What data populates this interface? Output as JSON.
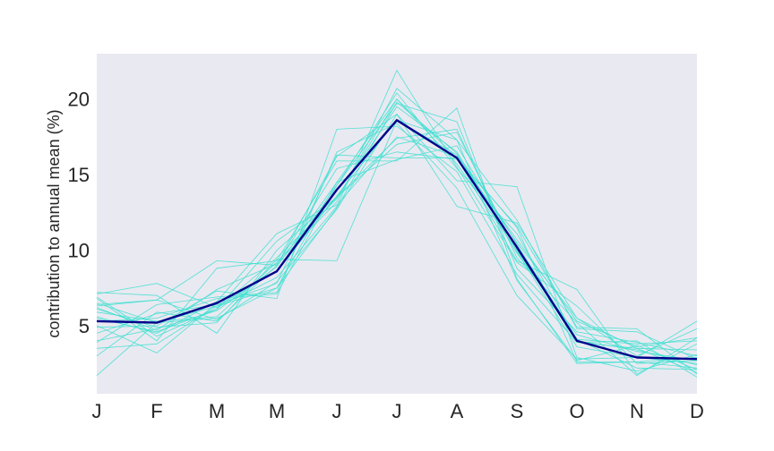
{
  "chart_data": {
    "type": "line",
    "title": "",
    "xlabel": "",
    "ylabel": "contribution to annual mean (%)",
    "categories": [
      "J",
      "F",
      "M",
      "M",
      "J",
      "J",
      "A",
      "S",
      "O",
      "N",
      "D"
    ],
    "ylim": [
      0.5,
      23
    ],
    "yticks": [
      5,
      10,
      15,
      20
    ],
    "grid": false,
    "background": "#e9e9f1",
    "colors": {
      "thin": "#40e0d0",
      "mean": "#00008b"
    },
    "series": [
      {
        "values": [
          6.5,
          5.2,
          6.3,
          8.6,
          13.6,
          18.6,
          16.3,
          10.5,
          5.5,
          3.0,
          4.8
        ]
      },
      {
        "values": [
          4.0,
          4.8,
          6.0,
          8.9,
          14.5,
          20.0,
          16.1,
          10.7,
          5.3,
          3.6,
          4.2
        ]
      },
      {
        "values": [
          1.7,
          5.2,
          5.5,
          7.5,
          12.8,
          19.8,
          16.4,
          9.8,
          4.4,
          3.3,
          2.7
        ]
      },
      {
        "values": [
          5.0,
          3.2,
          6.5,
          8.6,
          14.3,
          20.4,
          15.4,
          11.1,
          4.1,
          3.8,
          4.0
        ]
      },
      {
        "values": [
          6.9,
          4.3,
          6.1,
          9.5,
          13.4,
          20.0,
          15.7,
          10.0,
          4.0,
          3.4,
          2.4
        ]
      },
      {
        "values": [
          5.9,
          5.3,
          5.6,
          9.2,
          13.5,
          19.5,
          16.5,
          10.1,
          3.9,
          3.5,
          1.9
        ]
      },
      {
        "values": [
          7.2,
          7.0,
          4.5,
          10.0,
          13.5,
          17.0,
          17.8,
          9.9,
          3.6,
          2.9,
          2.5
        ]
      },
      {
        "values": [
          3.5,
          3.8,
          6.3,
          7.5,
          14.5,
          16.0,
          16.9,
          10.4,
          4.1,
          2.2,
          2.1
        ]
      },
      {
        "values": [
          5.6,
          4.5,
          6.6,
          11.1,
          13.0,
          17.5,
          16.2,
          11.5,
          2.6,
          2.6,
          2.9
        ]
      },
      {
        "values": [
          6.4,
          6.7,
          5.4,
          7.9,
          12.7,
          19.0,
          14.6,
          14.2,
          2.9,
          2.0,
          3.1
        ]
      },
      {
        "values": [
          3.0,
          5.9,
          5.3,
          9.0,
          15.4,
          16.5,
          16.0,
          11.6,
          4.9,
          4.8,
          1.8
        ]
      },
      {
        "values": [
          6.3,
          6.7,
          9.3,
          9.0,
          16.2,
          19.0,
          12.9,
          11.8,
          5.5,
          3.5,
          3.4
        ]
      },
      {
        "values": [
          3.9,
          6.4,
          6.9,
          7.2,
          16.5,
          18.4,
          14.1,
          7.0,
          2.8,
          2.9,
          5.3
        ]
      },
      {
        "values": [
          5.3,
          5.5,
          6.8,
          7.1,
          14.3,
          19.7,
          18.5,
          8.8,
          4.6,
          3.9,
          3.0
        ]
      },
      {
        "values": [
          4.9,
          5.0,
          7.3,
          6.8,
          18.0,
          18.2,
          15.2,
          8.4,
          3.9,
          4.0,
          1.6
        ]
      },
      {
        "values": [
          6.8,
          4.0,
          8.8,
          9.3,
          15.9,
          15.9,
          19.4,
          8.1,
          2.5,
          2.6,
          2.2
        ]
      },
      {
        "values": [
          5.5,
          4.6,
          6.1,
          10.6,
          13.5,
          17.4,
          18.0,
          9.5,
          5.2,
          1.7,
          4.2
        ]
      },
      {
        "values": [
          7.1,
          7.8,
          6.2,
          8.2,
          12.9,
          21.9,
          15.5,
          9.2,
          6.3,
          2.5,
          2.7
        ]
      },
      {
        "values": [
          6.2,
          4.7,
          7.4,
          9.1,
          13.2,
          20.7,
          17.3,
          8.0,
          2.7,
          3.7,
          2.1
        ]
      },
      {
        "values": [
          4.5,
          5.8,
          6.4,
          7.8,
          16.3,
          16.1,
          16.1,
          9.3,
          7.4,
          1.8,
          3.8
        ]
      },
      {
        "values": [
          6.1,
          4.9,
          5.2,
          9.4,
          9.3,
          18.6,
          17.3,
          12.0,
          4.8,
          4.6,
          2.8
        ]
      }
    ],
    "mean": {
      "values": [
        5.3,
        5.2,
        6.5,
        8.6,
        14.0,
        18.6,
        16.1,
        10.2,
        4.0,
        2.9,
        2.8
      ]
    }
  }
}
